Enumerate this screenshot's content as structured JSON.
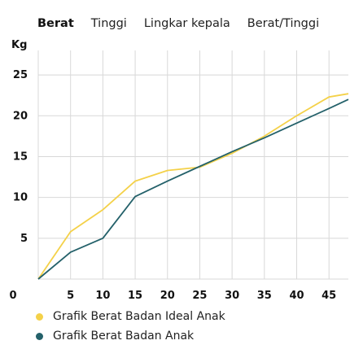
{
  "tabs": [
    {
      "label": "Berat",
      "active": true
    },
    {
      "label": "Tinggi",
      "active": false
    },
    {
      "label": "Lingkar kepala",
      "active": false
    },
    {
      "label": "Berat/Tinggi",
      "active": false
    }
  ],
  "colors": {
    "ideal": "#f4d149",
    "actual": "#24616a",
    "grid": "#d8d8d8"
  },
  "chart_data": {
    "type": "line",
    "ylabel": "Kg",
    "xlabel": "",
    "xlim": [
      0,
      48
    ],
    "ylim": [
      0,
      28
    ],
    "x_ticks": [
      0,
      5,
      10,
      15,
      20,
      25,
      30,
      35,
      40,
      45
    ],
    "y_ticks": [
      5,
      10,
      15,
      20,
      25
    ],
    "grid": true,
    "legend_position": "bottom-left",
    "series": [
      {
        "name": "Grafik Berat Badan Ideal Anak",
        "color": "#f4d149",
        "x": [
          0,
          5,
          10,
          15,
          20,
          25,
          30,
          35,
          40,
          45,
          48
        ],
        "y": [
          0,
          5.8,
          8.5,
          12,
          13.3,
          13.7,
          15.4,
          17.5,
          20,
          22.3,
          22.7
        ]
      },
      {
        "name": "Grafik Berat Badan Anak",
        "color": "#24616a",
        "x": [
          0,
          5,
          10,
          15,
          20,
          25,
          30,
          35,
          40,
          45,
          48
        ],
        "y": [
          0,
          3.3,
          5,
          10.1,
          12,
          13.8,
          15.6,
          17.3,
          19.1,
          20.9,
          22
        ]
      }
    ]
  }
}
